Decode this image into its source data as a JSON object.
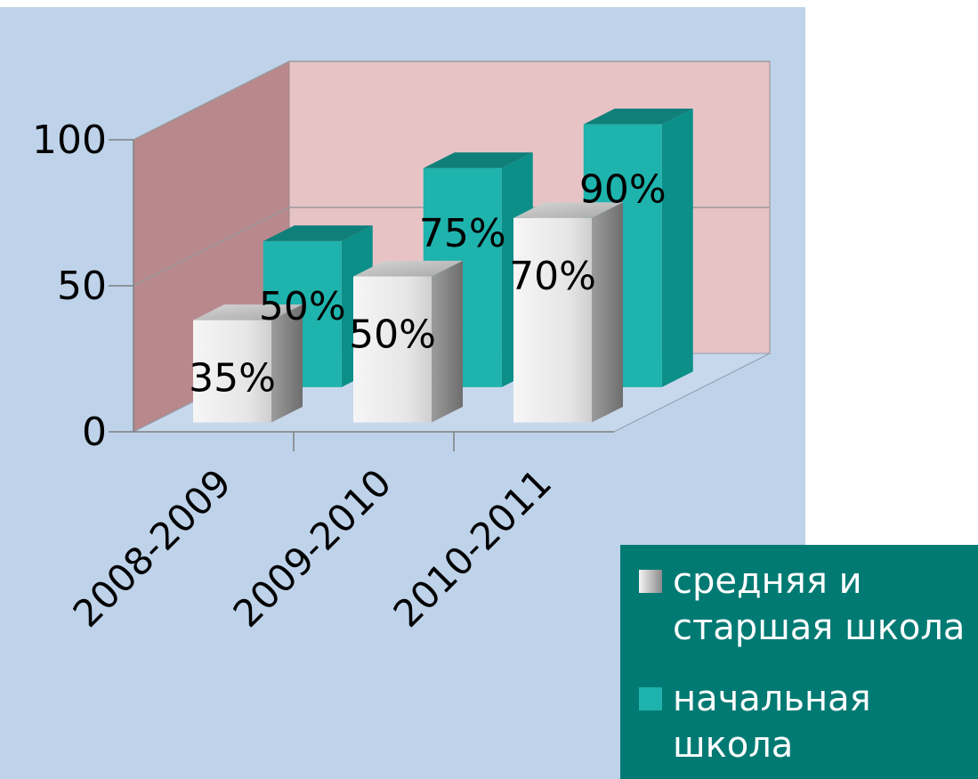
{
  "chart_data": {
    "type": "bar",
    "style": "3d-clustered-column",
    "categories": [
      "2008-2009",
      "2009-2010",
      "2010-2011"
    ],
    "series": [
      {
        "name": "средняя и старшая школа",
        "values": [
          35,
          50,
          70
        ],
        "labels": [
          "35%",
          "50%",
          "70%"
        ],
        "color": "#e8e8e8"
      },
      {
        "name": "начальная школа",
        "values": [
          50,
          75,
          90
        ],
        "labels": [
          "50%",
          "75%",
          "90%"
        ],
        "color": "#1fb3ad"
      }
    ],
    "yticks": [
      {
        "value": 0,
        "label": "0"
      },
      {
        "value": 50,
        "label": "50"
      },
      {
        "value": 100,
        "label": "100"
      }
    ],
    "ylim": [
      0,
      100
    ],
    "grid": true,
    "legend": {
      "placement": "bottom-right",
      "entries": [
        {
          "lines": [
            "средняя и",
            "старшая школа"
          ]
        },
        {
          "lines": [
            "начальная",
            "школа"
          ]
        }
      ]
    },
    "colors": {
      "plot_background": "#bed3ea",
      "back_wall": "#e7c3c6",
      "side_wall": "#b9888d",
      "floor": "#c7d8ec",
      "legend_background": "#007a73",
      "gridline": "#9a9a9a"
    }
  }
}
